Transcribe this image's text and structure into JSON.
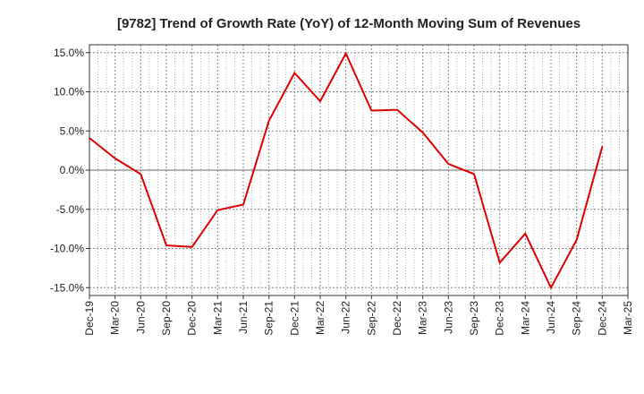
{
  "chart_data": {
    "type": "line",
    "title": "[9782]  Trend of Growth Rate (YoY) of 12-Month Moving Sum of Revenues",
    "xlabel": "",
    "ylabel": "",
    "categories": [
      "Dec-19",
      "Mar-20",
      "Jun-20",
      "Sep-20",
      "Dec-20",
      "Mar-21",
      "Jun-21",
      "Sep-21",
      "Dec-21",
      "Mar-22",
      "Jun-22",
      "Sep-22",
      "Dec-22",
      "Mar-23",
      "Jun-23",
      "Sep-23",
      "Dec-23",
      "Mar-24",
      "Jun-24",
      "Sep-24",
      "Dec-24",
      "Mar-25"
    ],
    "y_ticks": [
      "15.0%",
      "10.0%",
      "5.0%",
      "0.0%",
      "-5.0%",
      "-10.0%",
      "-15.0%"
    ],
    "y_tick_values": [
      15,
      10,
      5,
      0,
      -5,
      -10,
      -15
    ],
    "ylim": [
      -16,
      16
    ],
    "grid": true,
    "series": [
      {
        "values": [
          4.1,
          1.5,
          -0.5,
          -9.6,
          -9.8,
          -5.1,
          -4.4,
          6.3,
          12.4,
          8.8,
          14.9,
          7.6,
          7.7,
          4.8,
          0.8,
          -0.5,
          -11.8,
          -8.1,
          -15.0,
          -8.9,
          3.0,
          null
        ]
      }
    ],
    "colors": {
      "line": "#e00000",
      "grid": "#888888",
      "zero_line": "#666666",
      "axis": "#333333"
    }
  }
}
